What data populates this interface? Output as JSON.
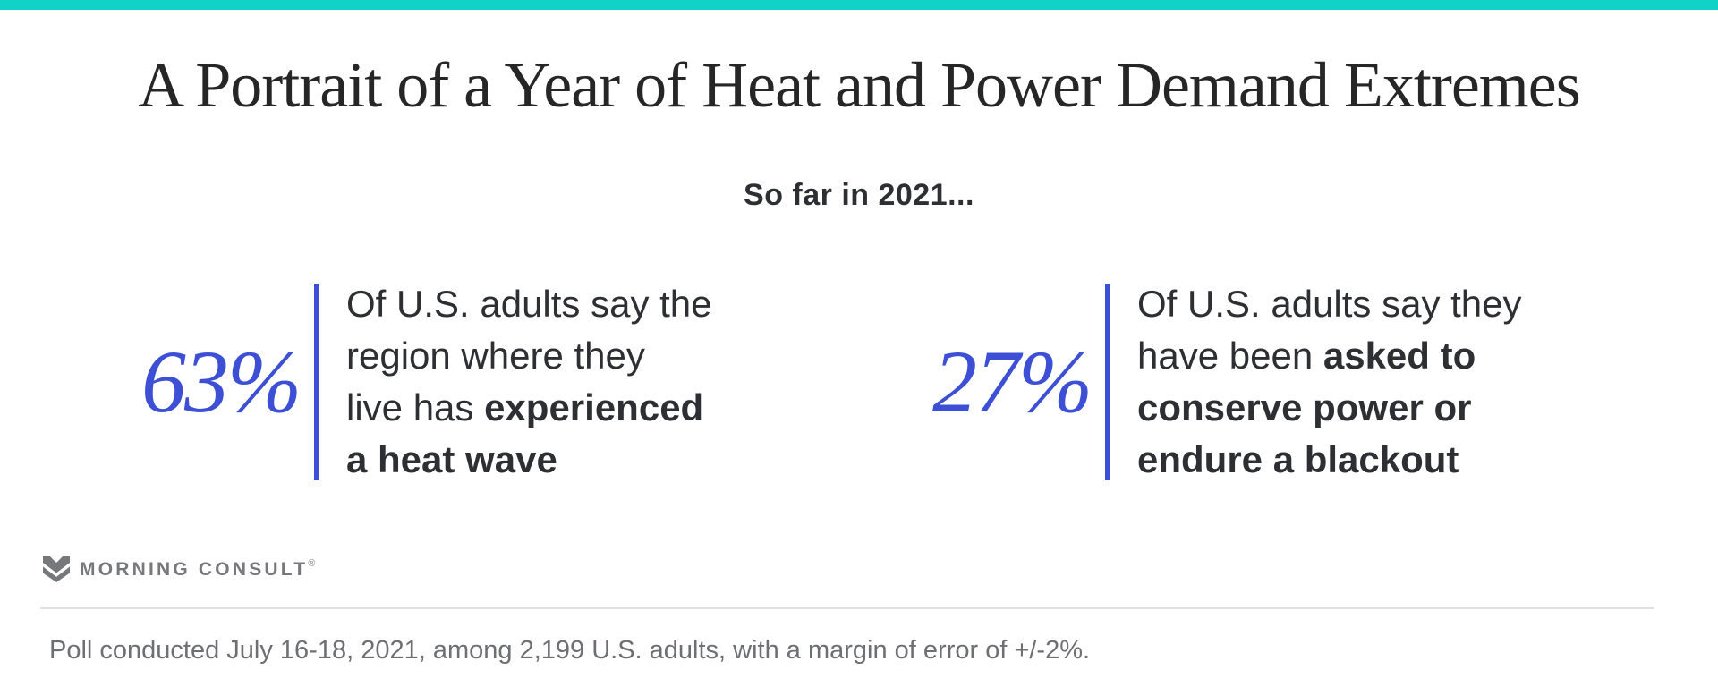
{
  "title": "A Portrait of a Year of Heat and Power Demand Extremes",
  "subtitle": "So far in 2021...",
  "stats": [
    {
      "value": "63%",
      "lines": [
        [
          {
            "t": "Of U.S. adults say the"
          }
        ],
        [
          {
            "t": "region where they"
          }
        ],
        [
          {
            "t": "live has "
          },
          {
            "t": "experienced",
            "b": true
          }
        ],
        [
          {
            "t": "a heat wave",
            "b": true
          }
        ]
      ]
    },
    {
      "value": "27%",
      "lines": [
        [
          {
            "t": "Of U.S. adults say they"
          }
        ],
        [
          {
            "t": "have been "
          },
          {
            "t": "asked to",
            "b": true
          }
        ],
        [
          {
            "t": "conserve power or",
            "b": true
          }
        ],
        [
          {
            "t": "endure a blackout",
            "b": true
          }
        ]
      ]
    }
  ],
  "logo": {
    "text": "MORNING CONSULT",
    "registered": "®"
  },
  "footnote": "Poll conducted July 16-18, 2021, among 2,199 U.S. adults, with a margin of error of +/-2%.",
  "colors": {
    "accent_teal": "#10d2c6",
    "stat_blue": "#3d4fd5",
    "title_color": "#262626",
    "text_dark": "#2d2f33",
    "logo_gray": "#77787b",
    "footnote_gray": "#6e6f72"
  },
  "chart_data": {
    "type": "table",
    "title": "A Portrait of a Year of Heat and Power Demand Extremes",
    "subtitle": "So far in 2021...",
    "unit": "%",
    "series": [
      {
        "name": "U.S. adults who say the region where they live has experienced a heat wave",
        "value": 63
      },
      {
        "name": "U.S. adults who say they have been asked to conserve power or endure a blackout",
        "value": 27
      }
    ]
  }
}
